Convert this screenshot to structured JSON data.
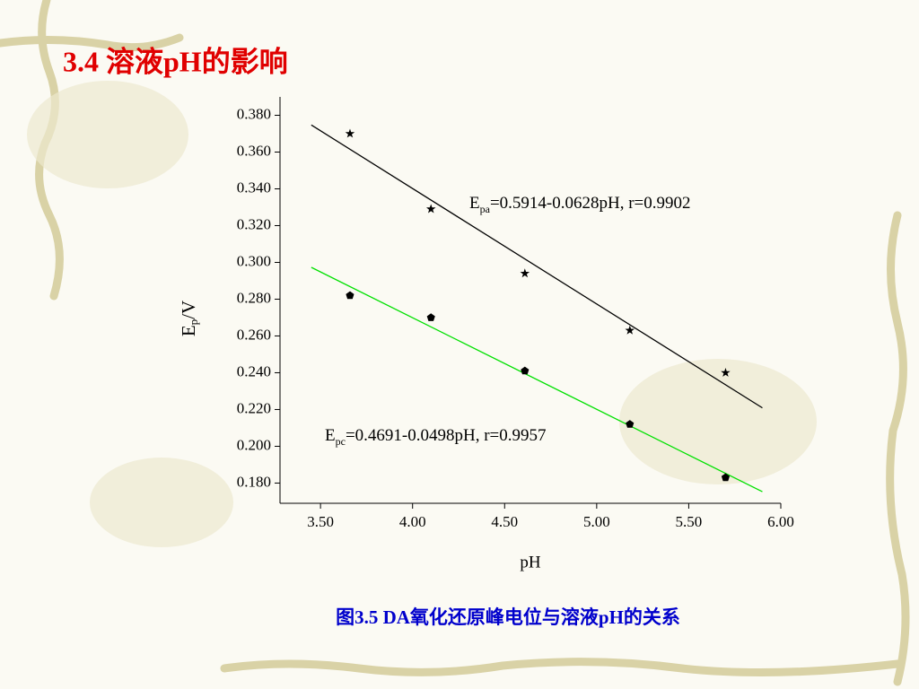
{
  "chart_data": {
    "type": "scatter",
    "title": "3.4 溶液pH的影响",
    "caption": "图3.5  DA氧化还原峰电位与溶液pH的关系",
    "xlabel": "pH",
    "ylabel": {
      "main": "E",
      "sub": "p",
      "rest": "/V"
    },
    "x": [
      3.66,
      4.1,
      4.61,
      5.18,
      5.7
    ],
    "series": [
      {
        "marker": "star",
        "color": "#000000",
        "values": [
          0.37,
          0.329,
          0.294,
          0.263,
          0.24
        ]
      },
      {
        "marker": "pentagon",
        "color": "#000000",
        "values": [
          0.282,
          0.27,
          0.241,
          0.212,
          0.183
        ]
      }
    ],
    "fits": [
      {
        "color": "#000000",
        "x": [
          3.45,
          5.9
        ],
        "values": [
          0.3747,
          0.2209
        ]
      },
      {
        "color": "#00e000",
        "x": [
          3.45,
          5.9
        ],
        "values": [
          0.2973,
          0.1753
        ]
      }
    ],
    "annotations": [
      {
        "main": "E",
        "sub": "pa",
        "rest": "=0.5914-0.0628pH, r=0.9902"
      },
      {
        "main": "E",
        "sub": "pc",
        "rest": "=0.4691-0.0498pH, r=0.9957"
      }
    ],
    "xlim": [
      3.28,
      6.0
    ],
    "ylim": [
      0.169,
      0.39
    ],
    "xticks": [
      {
        "value": 3.5,
        "label": "3.50"
      },
      {
        "value": 4.0,
        "label": "4.00"
      },
      {
        "value": 4.5,
        "label": "4.50"
      },
      {
        "value": 5.0,
        "label": "5.00"
      },
      {
        "value": 5.5,
        "label": "5.50"
      },
      {
        "value": 6.0,
        "label": "6.00"
      }
    ],
    "yticks": [
      {
        "value": 0.18,
        "label": "0.180"
      },
      {
        "value": 0.2,
        "label": "0.200"
      },
      {
        "value": 0.22,
        "label": "0.220"
      },
      {
        "value": 0.24,
        "label": "0.240"
      },
      {
        "value": 0.26,
        "label": "0.260"
      },
      {
        "value": 0.28,
        "label": "0.280"
      },
      {
        "value": 0.3,
        "label": "0.300"
      },
      {
        "value": 0.32,
        "label": "0.320"
      },
      {
        "value": 0.34,
        "label": "0.340"
      },
      {
        "value": 0.36,
        "label": "0.360"
      },
      {
        "value": 0.38,
        "label": "0.380"
      }
    ]
  }
}
